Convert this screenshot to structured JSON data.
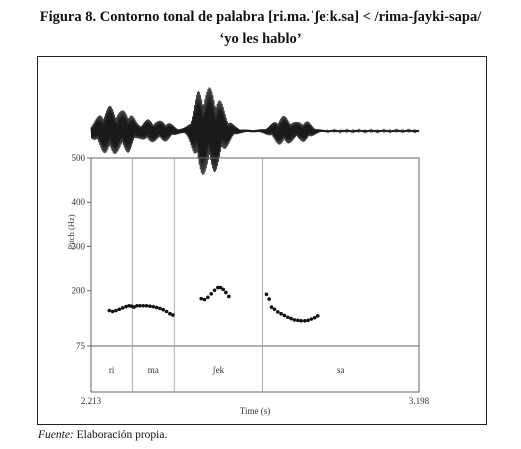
{
  "caption": {
    "line1": "Figura 8. Contorno tonal de palabra [ri.ma.ˈʃeːk.sa] < /rima-ʃayki-sapa/",
    "line2": "‘yo les hablo’"
  },
  "source": {
    "label": "Fuente:",
    "text": " Elaboración propia."
  },
  "chart_data": {
    "type": "scatter",
    "title": "",
    "xlabel": "Time (s)",
    "ylabel": "Pitch (Hz)",
    "xlim": [
      2.213,
      3.198
    ],
    "xtick_labels": [
      "2.213",
      "3.198"
    ],
    "ylim": [
      75,
      500
    ],
    "yticks": [
      75,
      200,
      300,
      400,
      500
    ],
    "ytick_labels": [
      "75",
      "200",
      "300",
      "400",
      "500"
    ],
    "grid": false,
    "segments": [
      {
        "label": "ri",
        "start": 2.213,
        "end": 2.337
      },
      {
        "label": "ma",
        "start": 2.337,
        "end": 2.463
      },
      {
        "label": "ʃek",
        "start": 2.463,
        "end": 2.728
      },
      {
        "label": "sa",
        "start": 2.728,
        "end": 3.198
      }
    ],
    "series": [
      {
        "x": [
          2.268,
          2.278,
          2.288,
          2.298,
          2.308,
          2.318,
          2.327,
          2.335,
          2.342,
          2.351,
          2.36,
          2.37,
          2.38,
          2.39,
          2.4,
          2.41,
          2.42,
          2.43,
          2.44,
          2.45,
          2.459
        ],
        "y": [
          155,
          153,
          155,
          158,
          161,
          164,
          166,
          165,
          163,
          166,
          166,
          166,
          166,
          165,
          164,
          162,
          160,
          157,
          153,
          148,
          145
        ]
      },
      {
        "x": [
          2.544,
          2.554,
          2.564,
          2.574,
          2.584,
          2.594,
          2.602,
          2.61,
          2.618,
          2.627
        ],
        "y": [
          182,
          180,
          185,
          193,
          201,
          207,
          207,
          203,
          196,
          187
        ]
      },
      {
        "x": [
          2.74,
          2.748,
          2.755,
          2.764,
          2.774,
          2.784,
          2.794,
          2.804,
          2.814,
          2.824,
          2.834,
          2.844,
          2.855,
          2.865,
          2.875,
          2.885,
          2.894
        ],
        "y": [
          192,
          181,
          163,
          158,
          152,
          148,
          144,
          140,
          137,
          134,
          133,
          132,
          132,
          133,
          136,
          139,
          143
        ]
      }
    ]
  }
}
